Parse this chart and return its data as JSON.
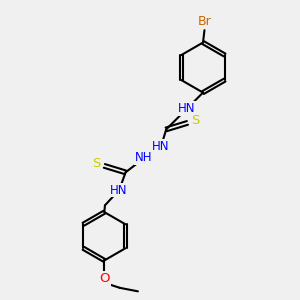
{
  "background_color": "#f0f0f0",
  "atom_colors": {
    "C": "#000000",
    "H": "#5f9ea0",
    "N": "#0000ff",
    "S": "#cccc00",
    "Br": "#cc6600",
    "O": "#ff0000"
  },
  "figsize": [
    3.0,
    3.0
  ],
  "dpi": 100,
  "xlim": [
    0,
    10
  ],
  "ylim": [
    0,
    10
  ]
}
